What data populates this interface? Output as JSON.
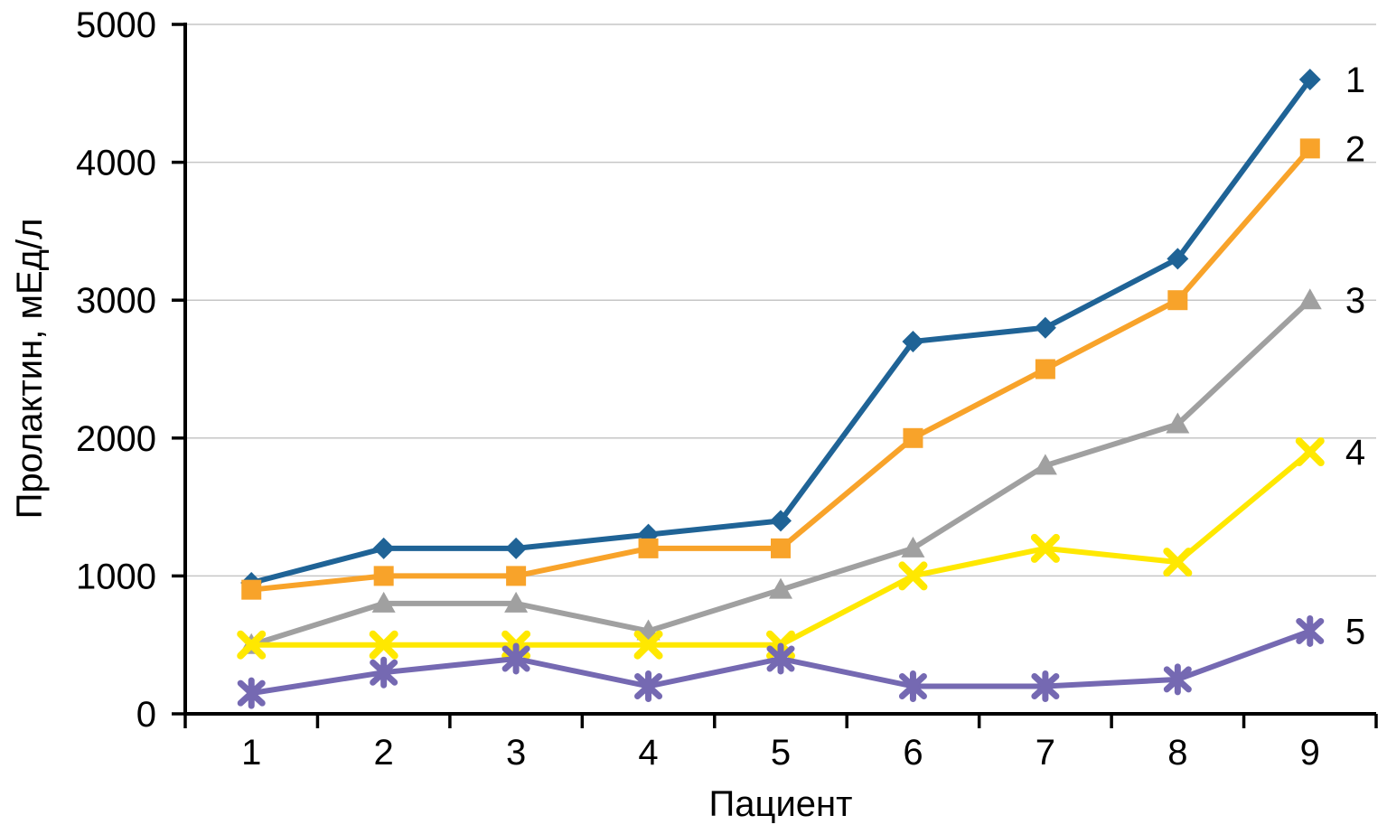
{
  "chart_data": {
    "type": "line",
    "title": "",
    "xlabel": "Пациент",
    "ylabel": "Пролактин, мЕд/л",
    "categories": [
      "1",
      "2",
      "3",
      "4",
      "5",
      "6",
      "7",
      "8",
      "9"
    ],
    "ylim": [
      0,
      5000
    ],
    "yticks": [
      0,
      1000,
      2000,
      3000,
      4000,
      5000
    ],
    "ytick_labels": [
      "0",
      "1000",
      "2000",
      "3000",
      "4000",
      "5000"
    ],
    "grid": "horizontal",
    "legend_position": "right-end-labels",
    "series": [
      {
        "name": "1",
        "marker": "diamond",
        "color": "#1F6396",
        "values": [
          950,
          1200,
          1200,
          1300,
          1400,
          2700,
          2800,
          3300,
          4600
        ]
      },
      {
        "name": "2",
        "marker": "square",
        "color": "#F8A32A",
        "values": [
          900,
          1000,
          1000,
          1200,
          1200,
          2000,
          2500,
          3000,
          4100
        ]
      },
      {
        "name": "3",
        "marker": "triangle",
        "color": "#A0A0A0",
        "values": [
          500,
          800,
          800,
          600,
          900,
          1200,
          1800,
          2100,
          3000
        ]
      },
      {
        "name": "4",
        "marker": "x",
        "color": "#FFE800",
        "values": [
          500,
          500,
          500,
          500,
          500,
          1000,
          1200,
          1100,
          1900
        ]
      },
      {
        "name": "5",
        "marker": "asterisk",
        "color": "#7569B2",
        "values": [
          150,
          300,
          400,
          200,
          400,
          200,
          200,
          250,
          600
        ]
      }
    ],
    "axis_color": "#000000",
    "gridline_color": "#C6C6C6"
  }
}
